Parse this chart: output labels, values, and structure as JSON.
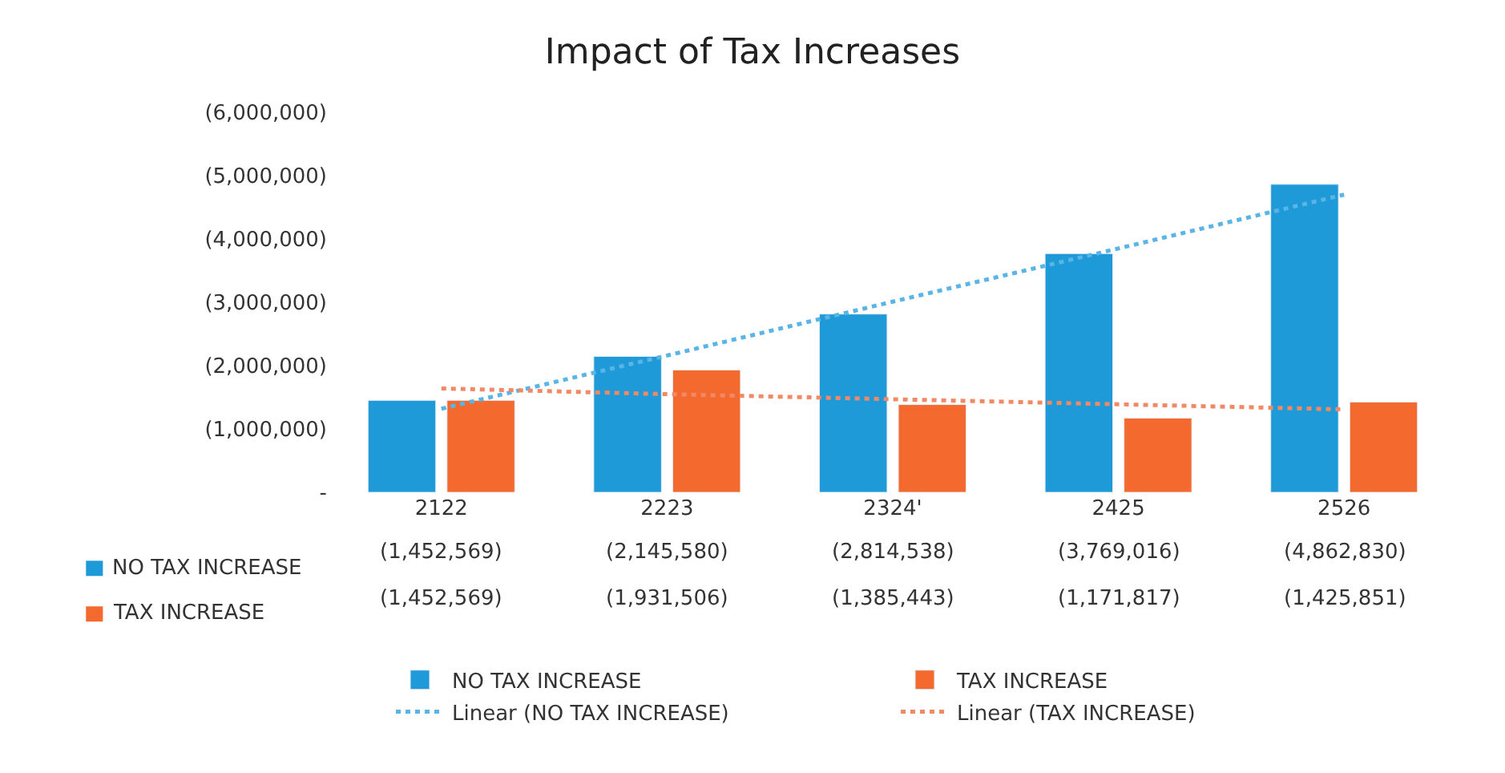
{
  "chart_data": {
    "type": "bar",
    "title": "Impact of Tax Increases",
    "categories": [
      "2122",
      "2223",
      "2324'",
      "2425",
      "2526"
    ],
    "series": [
      {
        "name": "NO TAX INCREASE",
        "color": "#1f9ad8",
        "values": [
          -1452569,
          -2145580,
          -2814538,
          -3769016,
          -4862830
        ],
        "value_labels": [
          "(1,452,569)",
          "(2,145,580)",
          "(2,814,538)",
          "(3,769,016)",
          "(4,862,830)"
        ]
      },
      {
        "name": "TAX INCREASE",
        "color": "#f4692e",
        "values": [
          -1452569,
          -1931506,
          -1385443,
          -1171817,
          -1425851
        ],
        "value_labels": [
          "(1,452,569)",
          "(1,931,506)",
          "(1,385,443)",
          "(1,171,817)",
          "(1,425,851)"
        ]
      },
      {
        "name": "Linear (NO TAX INCREASE)",
        "type": "line",
        "color": "#5ab4e6",
        "line_style": "dotted",
        "values": [
          -1320000,
          -2160000,
          -3010000,
          -3850000,
          -4700000
        ]
      },
      {
        "name": "Linear (TAX INCREASE)",
        "type": "line",
        "color": "#f08a66",
        "line_style": "dotted",
        "values": [
          -1640000,
          -1550000,
          -1470000,
          -1390000,
          -1310000
        ]
      }
    ],
    "ylim": [
      0,
      -6000000
    ],
    "yticks": [
      {
        "value": 0,
        "label": "-"
      },
      {
        "value": -1000000,
        "label": "(1,000,000)"
      },
      {
        "value": -2000000,
        "label": "(2,000,000)"
      },
      {
        "value": -3000000,
        "label": "(3,000,000)"
      },
      {
        "value": -4000000,
        "label": "(4,000,000)"
      },
      {
        "value": -5000000,
        "label": "(5,000,000)"
      },
      {
        "value": -6000000,
        "label": "(6,000,000)"
      }
    ],
    "legend": "bottom",
    "marker": "none"
  }
}
